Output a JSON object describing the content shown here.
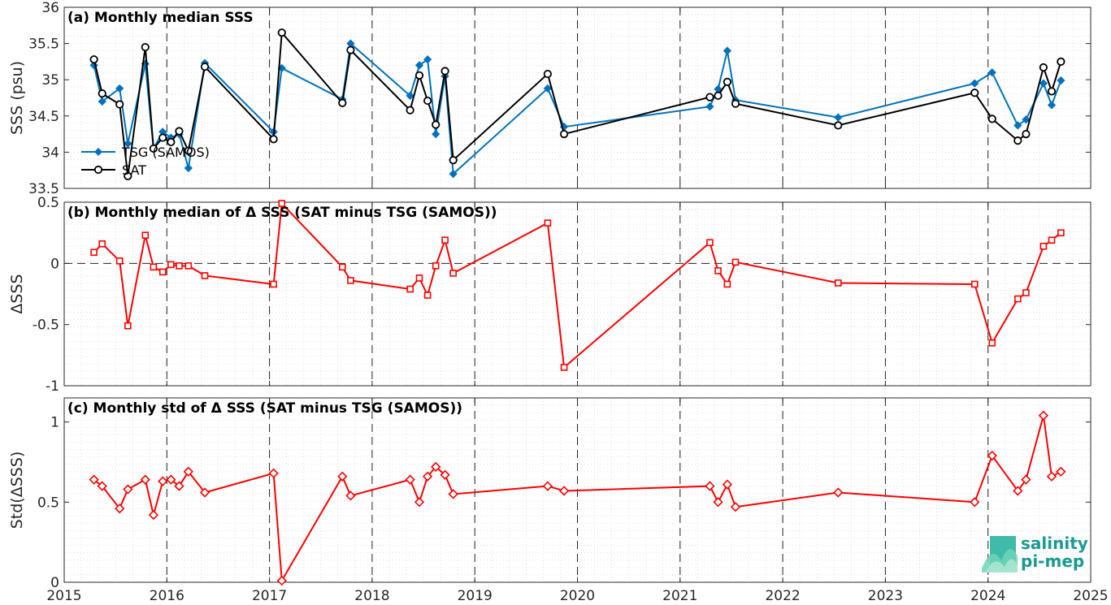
{
  "chart_data": [
    {
      "type": "line",
      "title": "(a) Monthly median SSS",
      "xlabel": "",
      "ylabel": "SSS (psu)",
      "xlim": [
        2015,
        2025
      ],
      "ylim": [
        33.5,
        36
      ],
      "yticks": [
        33.5,
        34,
        34.5,
        35,
        35.5,
        36
      ],
      "ytick_labels": [
        "33.5",
        "34",
        "34.5",
        "35",
        "35.5",
        "36"
      ],
      "grid": true,
      "legend": "left",
      "series": [
        {
          "name": "TSG (SAMOS)",
          "color": "#0072bd",
          "marker": "diamond",
          "x": [
            2015.29,
            2015.37,
            2015.54,
            2015.62,
            2015.79,
            2015.87,
            2015.96,
            2016.04,
            2016.12,
            2016.21,
            2016.37,
            2017.04,
            2017.12,
            2017.71,
            2017.79,
            2018.37,
            2018.46,
            2018.54,
            2018.62,
            2018.71,
            2018.79,
            2019.71,
            2019.87,
            2021.29,
            2021.37,
            2021.46,
            2021.54,
            2022.54,
            2023.87,
            2024.04,
            2024.29,
            2024.37,
            2024.54,
            2024.62,
            2024.71
          ],
          "values": [
            35.2,
            34.7,
            34.88,
            34.12,
            35.22,
            34.05,
            34.28,
            34.2,
            34.25,
            33.78,
            35.23,
            34.28,
            35.16,
            34.73,
            35.5,
            34.78,
            35.2,
            35.28,
            34.25,
            35.05,
            33.7,
            34.88,
            34.35,
            34.63,
            34.87,
            35.4,
            34.72,
            34.48,
            34.95,
            35.1,
            34.37,
            34.45,
            34.95,
            34.65,
            34.99
          ]
        },
        {
          "name": "SAT",
          "color": "#000000",
          "marker": "circle",
          "x": [
            2015.29,
            2015.37,
            2015.54,
            2015.62,
            2015.79,
            2015.87,
            2015.96,
            2016.04,
            2016.12,
            2016.21,
            2016.37,
            2017.04,
            2017.12,
            2017.71,
            2017.79,
            2018.37,
            2018.46,
            2018.54,
            2018.62,
            2018.71,
            2018.79,
            2019.71,
            2019.87,
            2021.29,
            2021.37,
            2021.46,
            2021.54,
            2022.54,
            2023.87,
            2024.04,
            2024.29,
            2024.37,
            2024.54,
            2024.62,
            2024.71
          ],
          "values": [
            35.28,
            34.81,
            34.66,
            33.67,
            35.45,
            34.05,
            34.2,
            34.14,
            34.29,
            34.02,
            35.18,
            34.18,
            35.65,
            34.68,
            35.41,
            34.58,
            35.06,
            34.71,
            34.38,
            35.12,
            33.89,
            35.08,
            34.25,
            34.76,
            34.78,
            34.97,
            34.67,
            34.37,
            34.82,
            34.46,
            34.16,
            34.25,
            35.17,
            34.84,
            35.25
          ]
        }
      ]
    },
    {
      "type": "line",
      "title": "(b) Monthly median of Δ SSS (SAT minus TSG (SAMOS))",
      "xlabel": "",
      "ylabel": "ΔSSS",
      "xlim": [
        2015,
        2025
      ],
      "ylim": [
        -1,
        0.5
      ],
      "yticks": [
        -1,
        -0.5,
        0,
        0.5
      ],
      "ytick_labels": [
        "-1",
        "-0.5",
        "0",
        "0.5"
      ],
      "zero_line": true,
      "grid": true,
      "series": [
        {
          "color": "#ff0000",
          "marker": "square",
          "x": [
            2015.29,
            2015.37,
            2015.54,
            2015.62,
            2015.79,
            2015.87,
            2015.96,
            2016.04,
            2016.12,
            2016.21,
            2016.37,
            2017.04,
            2017.12,
            2017.71,
            2017.79,
            2018.37,
            2018.46,
            2018.54,
            2018.62,
            2018.71,
            2018.79,
            2019.71,
            2019.87,
            2021.29,
            2021.37,
            2021.46,
            2021.54,
            2022.54,
            2023.87,
            2024.04,
            2024.29,
            2024.37,
            2024.54,
            2024.62,
            2024.71
          ],
          "values": [
            0.09,
            0.16,
            0.02,
            -0.51,
            0.23,
            -0.03,
            -0.07,
            -0.01,
            -0.02,
            -0.02,
            -0.1,
            -0.17,
            0.49,
            -0.03,
            -0.14,
            -0.21,
            -0.12,
            -0.26,
            -0.02,
            0.19,
            -0.08,
            0.33,
            -0.85,
            0.17,
            -0.06,
            -0.17,
            0.01,
            -0.16,
            -0.17,
            -0.65,
            -0.29,
            -0.24,
            0.14,
            0.19,
            0.25
          ]
        }
      ]
    },
    {
      "type": "line",
      "title": "(c) Monthly std of Δ SSS (SAT minus TSG (SAMOS))",
      "xlabel": "",
      "ylabel": "Std(ΔSSS)",
      "xlim": [
        2015,
        2025
      ],
      "ylim": [
        0,
        1.15
      ],
      "yticks": [
        0,
        0.5,
        1
      ],
      "ytick_labels": [
        "0",
        "0.5",
        "1"
      ],
      "xticks": [
        2015,
        2016,
        2017,
        2018,
        2019,
        2020,
        2021,
        2022,
        2023,
        2024,
        2025
      ],
      "xtick_labels": [
        "2015",
        "2016",
        "2017",
        "2018",
        "2019",
        "2020",
        "2021",
        "2022",
        "2023",
        "2024",
        "2025"
      ],
      "grid": true,
      "series": [
        {
          "color": "#ff0000",
          "marker": "diamond",
          "x": [
            2015.29,
            2015.37,
            2015.54,
            2015.62,
            2015.79,
            2015.87,
            2015.96,
            2016.04,
            2016.12,
            2016.21,
            2016.37,
            2017.04,
            2017.12,
            2017.71,
            2017.79,
            2018.37,
            2018.46,
            2018.54,
            2018.62,
            2018.71,
            2018.79,
            2019.71,
            2019.87,
            2021.29,
            2021.37,
            2021.46,
            2021.54,
            2022.54,
            2023.87,
            2024.04,
            2024.29,
            2024.37,
            2024.54,
            2024.62,
            2024.71
          ],
          "values": [
            0.64,
            0.6,
            0.46,
            0.58,
            0.64,
            0.42,
            0.63,
            0.64,
            0.6,
            0.69,
            0.56,
            0.68,
            0.01,
            0.66,
            0.54,
            0.64,
            0.5,
            0.66,
            0.72,
            0.67,
            0.55,
            0.6,
            0.57,
            0.6,
            0.5,
            0.61,
            0.47,
            0.56,
            0.5,
            0.79,
            0.57,
            0.64,
            1.04,
            0.66,
            0.69
          ]
        }
      ]
    }
  ],
  "logo": {
    "line1": "salinity",
    "line2": "pi-mep"
  }
}
